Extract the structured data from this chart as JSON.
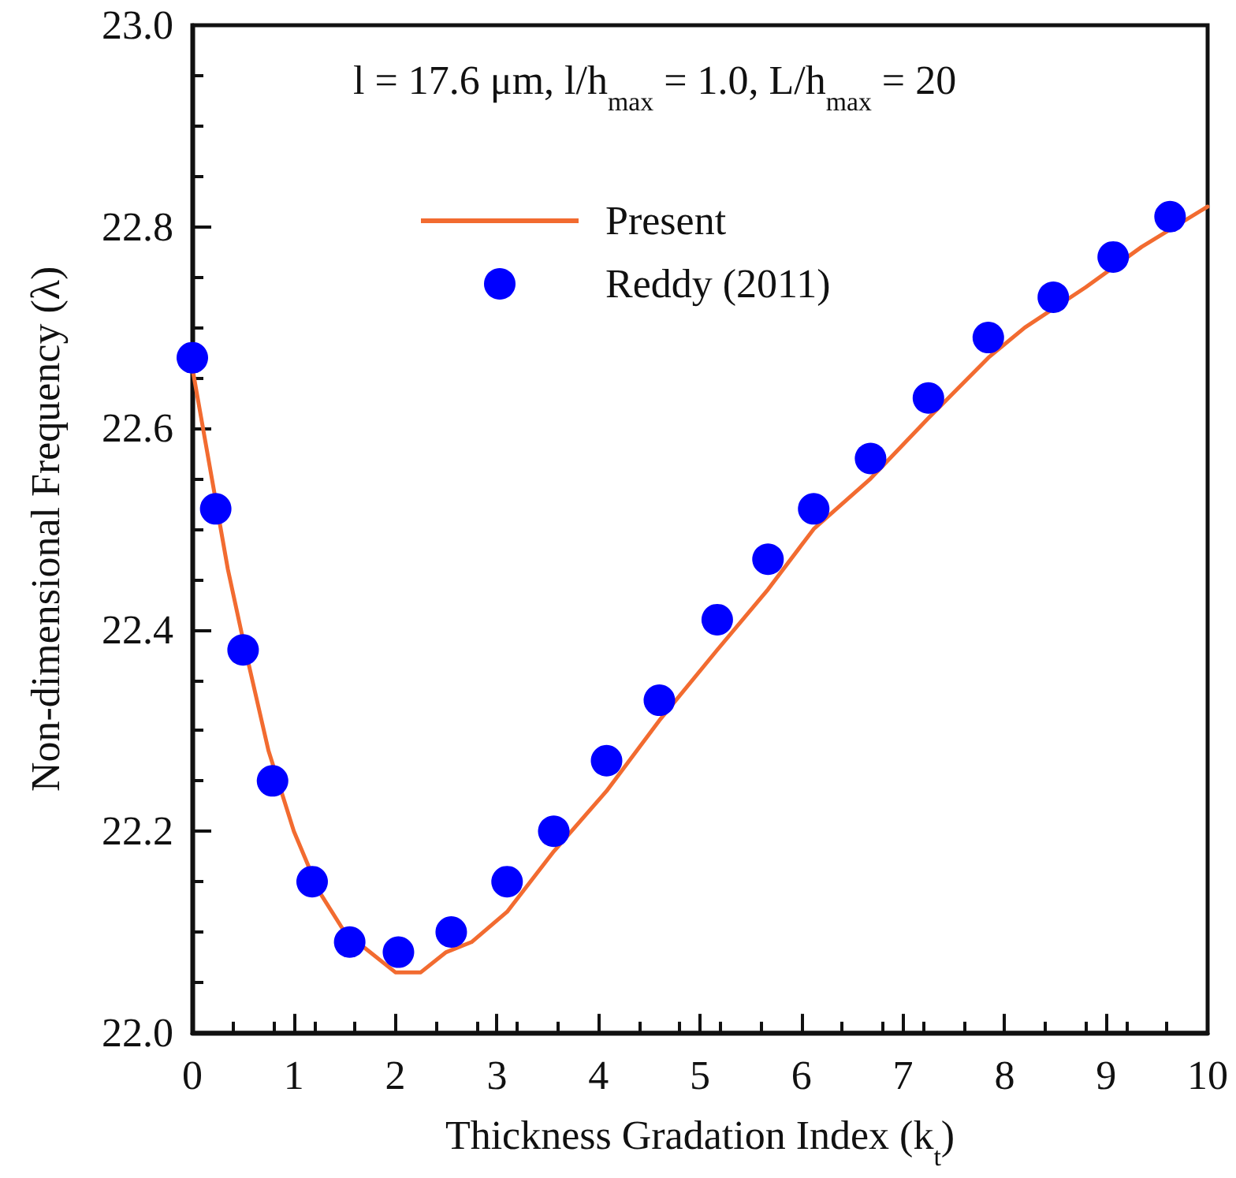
{
  "chart_data": {
    "type": "line",
    "xlabel": "Thickness Gradation Index (k$_{t}$)",
    "ylabel": "Non-dimensional Frequency (λ)",
    "annotations": [
      "l = 17.6 μm, l/h$_{max}$ = 1.0, L/h$_{max}$ = 20"
    ],
    "series": [
      {
        "name": "Present",
        "color": "#f26b30",
        "marker": "none",
        "line_style": "solid",
        "x": [
          0,
          0.35,
          0.5,
          0.75,
          1.0,
          1.25,
          1.5,
          1.75,
          2.0,
          2.25,
          2.5,
          2.75,
          3.1,
          3.56,
          4.08,
          4.6,
          5.17,
          5.67,
          6.12,
          6.68,
          7.25,
          7.84,
          8.2,
          8.8,
          9.35,
          10
        ],
        "values": [
          22.66,
          22.46,
          22.39,
          22.28,
          22.2,
          22.14,
          22.1,
          22.08,
          22.06,
          22.06,
          22.08,
          22.09,
          22.12,
          22.18,
          22.24,
          22.31,
          22.38,
          22.44,
          22.5,
          22.55,
          22.61,
          22.67,
          22.7,
          22.74,
          22.78,
          22.82
        ]
      },
      {
        "name": "Reddy (2011)",
        "type": "scatter",
        "color": "#0000ff",
        "marker": "circle",
        "x": [
          0,
          0.23,
          0.5,
          0.79,
          1.18,
          1.55,
          2.03,
          2.55,
          3.1,
          3.56,
          4.08,
          4.6,
          5.17,
          5.67,
          6.12,
          6.68,
          7.25,
          7.84,
          8.48,
          9.07,
          9.63
        ],
        "values": [
          22.67,
          22.52,
          22.38,
          22.25,
          22.15,
          22.09,
          22.08,
          22.1,
          22.15,
          22.2,
          22.27,
          22.33,
          22.41,
          22.47,
          22.52,
          22.57,
          22.63,
          22.69,
          22.73,
          22.77,
          22.81
        ]
      }
    ],
    "xlim": [
      0,
      10
    ],
    "xticks": [
      0,
      1,
      2,
      3,
      4,
      5,
      6,
      7,
      8,
      9,
      10
    ],
    "ylim": [
      22.0,
      23.0
    ],
    "yticks": [
      {
        "value": 22.0,
        "label": "22.0"
      },
      {
        "value": 22.2,
        "label": "22.2"
      },
      {
        "value": 22.4,
        "label": "22.4"
      },
      {
        "value": 22.6,
        "label": "22.6"
      },
      {
        "value": 22.8,
        "label": "22.8"
      },
      {
        "value": 23.0,
        "label": "23.0"
      }
    ],
    "grid": false,
    "legend": "top"
  }
}
